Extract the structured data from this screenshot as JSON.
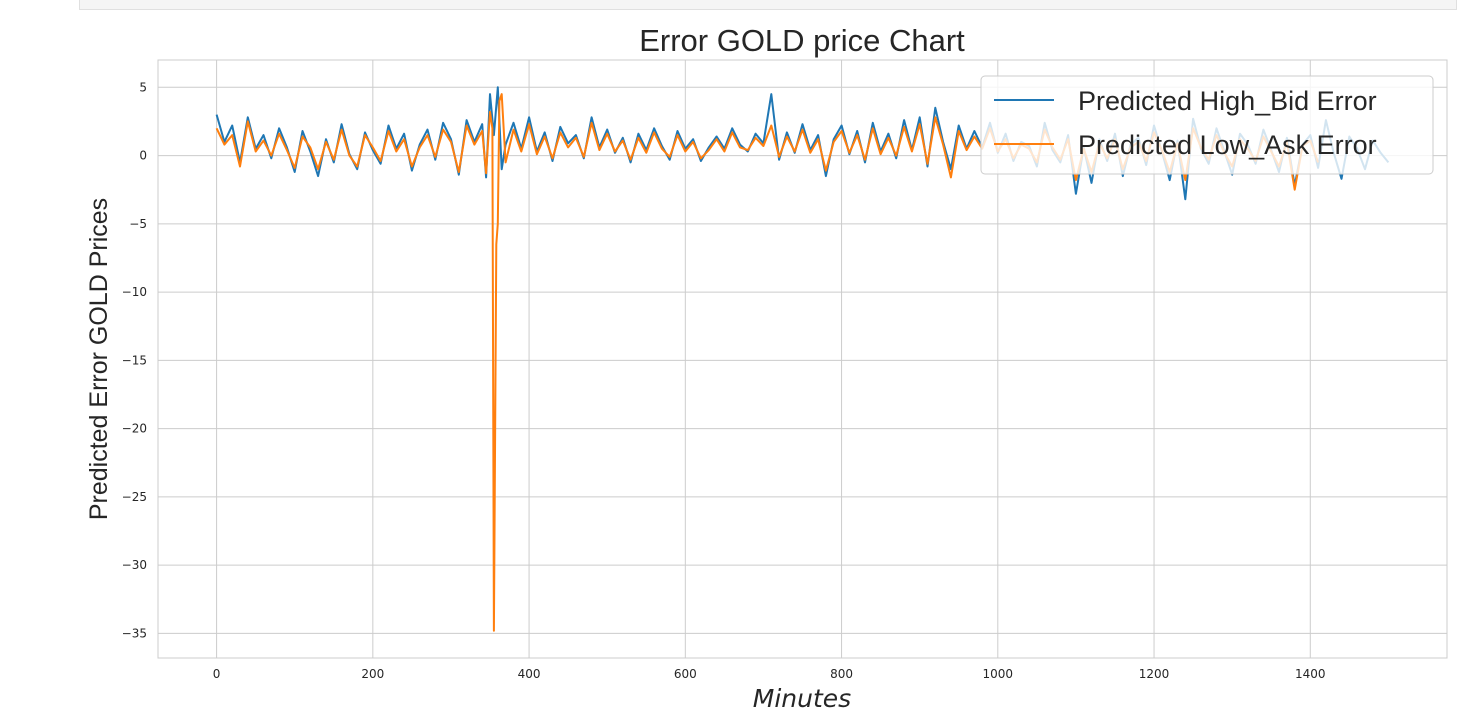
{
  "chart_data": {
    "type": "line",
    "title": "Error GOLD price Chart",
    "xlabel": "Minutes",
    "ylabel": "Predicted Error GOLD Prices",
    "xlim": [
      -75,
      1575
    ],
    "ylim": [
      -36.8,
      7.0
    ],
    "xticks": [
      0,
      200,
      400,
      600,
      800,
      1000,
      1200,
      1400
    ],
    "yticks": [
      5,
      0,
      -5,
      -10,
      -15,
      -20,
      -25,
      -30,
      -35
    ],
    "ytick_labels": [
      "5",
      "0",
      "−5",
      "−10",
      "−15",
      "−20",
      "−25",
      "−30",
      "−35"
    ],
    "grid": true,
    "legend_position": "top-right",
    "series": [
      {
        "name": "Predicted High_Bid Error",
        "color": "#1f77b4",
        "x": [
          0,
          10,
          20,
          30,
          40,
          50,
          60,
          70,
          80,
          90,
          100,
          110,
          120,
          130,
          140,
          150,
          160,
          170,
          180,
          190,
          200,
          210,
          220,
          230,
          240,
          250,
          260,
          270,
          280,
          290,
          300,
          310,
          320,
          330,
          340,
          345,
          350,
          355,
          360,
          365,
          370,
          380,
          390,
          400,
          410,
          420,
          430,
          440,
          450,
          460,
          470,
          480,
          490,
          500,
          510,
          520,
          530,
          540,
          550,
          560,
          570,
          580,
          590,
          600,
          610,
          620,
          630,
          640,
          650,
          660,
          670,
          680,
          690,
          700,
          710,
          720,
          730,
          740,
          750,
          760,
          770,
          780,
          790,
          800,
          810,
          820,
          830,
          840,
          850,
          860,
          870,
          880,
          890,
          900,
          910,
          920,
          930,
          940,
          950,
          960,
          970,
          980,
          990,
          1000,
          1010,
          1020,
          1030,
          1040,
          1050,
          1060,
          1070,
          1080,
          1090,
          1100,
          1110,
          1120,
          1130,
          1140,
          1150,
          1160,
          1170,
          1180,
          1190,
          1200,
          1210,
          1220,
          1230,
          1240,
          1250,
          1260,
          1270,
          1280,
          1290,
          1300,
          1310,
          1320,
          1330,
          1340,
          1350,
          1360,
          1370,
          1380,
          1390,
          1400,
          1410,
          1420,
          1430,
          1440,
          1450,
          1460,
          1470,
          1480,
          1490,
          1500
        ],
        "y": [
          3.0,
          1.0,
          2.2,
          -0.5,
          2.8,
          0.5,
          1.5,
          -0.2,
          2.0,
          0.6,
          -1.2,
          1.8,
          0.3,
          -1.5,
          1.2,
          -0.5,
          2.3,
          0.1,
          -1.0,
          1.7,
          0.4,
          -0.6,
          2.2,
          0.5,
          1.6,
          -1.1,
          0.8,
          1.9,
          -0.3,
          2.4,
          1.2,
          -1.4,
          2.6,
          1.0,
          2.3,
          -1.6,
          4.5,
          1.5,
          5.0,
          -1.0,
          0.8,
          2.4,
          0.5,
          2.8,
          0.3,
          1.7,
          -0.4,
          2.1,
          0.9,
          1.5,
          -0.2,
          2.8,
          0.6,
          1.9,
          0.2,
          1.3,
          -0.5,
          1.6,
          0.4,
          2.0,
          0.7,
          -0.3,
          1.8,
          0.5,
          1.2,
          -0.4,
          0.6,
          1.4,
          0.5,
          2.0,
          0.8,
          0.3,
          1.6,
          0.9,
          4.5,
          -0.3,
          1.7,
          0.2,
          2.3,
          0.4,
          1.5,
          -1.5,
          1.2,
          2.2,
          0.1,
          1.8,
          -0.5,
          2.4,
          0.3,
          1.6,
          -0.2,
          2.6,
          0.4,
          2.8,
          -0.8,
          3.5,
          1.0,
          -1.0,
          2.2,
          0.5,
          1.8,
          0.6,
          2.4,
          0.2,
          1.6,
          -0.4,
          1.0,
          0.7,
          -0.8,
          2.4,
          0.4,
          -0.5,
          1.5,
          -2.8,
          0.6,
          -2.0,
          1.2,
          -0.4,
          1.6,
          -1.5,
          0.8,
          1.3,
          -0.7,
          2.2,
          0.3,
          -1.8,
          1.1,
          -3.2,
          2.7,
          0.5,
          -0.6,
          2.0,
          0.3,
          -1.4,
          1.6,
          0.8,
          -0.6,
          1.9,
          0.4,
          -1.2,
          1.3,
          -2.2,
          0.8,
          1.5,
          -0.9,
          2.6,
          0.2,
          -1.7,
          1.4,
          0.5,
          -1.0,
          1.1,
          0.2,
          -0.5
        ]
      },
      {
        "name": "Predicted Low_Ask Error",
        "color": "#ff7f0e",
        "x": [
          0,
          10,
          20,
          30,
          40,
          50,
          60,
          70,
          80,
          90,
          100,
          110,
          120,
          130,
          140,
          150,
          160,
          170,
          180,
          190,
          200,
          210,
          220,
          230,
          240,
          250,
          260,
          270,
          280,
          290,
          300,
          310,
          320,
          330,
          340,
          345,
          350,
          353,
          355,
          358,
          360,
          362,
          365,
          370,
          380,
          390,
          400,
          410,
          420,
          430,
          440,
          450,
          460,
          470,
          480,
          490,
          500,
          510,
          520,
          530,
          540,
          550,
          560,
          570,
          580,
          590,
          600,
          610,
          620,
          630,
          640,
          650,
          660,
          670,
          680,
          690,
          700,
          710,
          720,
          730,
          740,
          750,
          760,
          770,
          780,
          790,
          800,
          810,
          820,
          830,
          840,
          850,
          860,
          870,
          880,
          890,
          900,
          910,
          920,
          930,
          940,
          950,
          960,
          970,
          980,
          990,
          1000,
          1010,
          1020,
          1030,
          1040,
          1050,
          1060,
          1070,
          1080,
          1090,
          1100,
          1110,
          1120,
          1130,
          1140,
          1150,
          1160,
          1170,
          1180,
          1190,
          1200,
          1210,
          1220,
          1230,
          1240,
          1250,
          1260,
          1270,
          1280,
          1290,
          1300,
          1310,
          1320,
          1330,
          1340,
          1350,
          1360,
          1370,
          1380,
          1390,
          1400,
          1410
        ],
        "y": [
          2.0,
          0.8,
          1.5,
          -0.8,
          2.5,
          0.3,
          1.1,
          0.0,
          1.6,
          0.4,
          -0.9,
          1.4,
          0.6,
          -1.0,
          1.0,
          -0.3,
          1.9,
          0.0,
          -0.8,
          1.5,
          0.6,
          -0.4,
          1.8,
          0.3,
          1.2,
          -0.8,
          0.6,
          1.5,
          -0.1,
          1.9,
          1.0,
          -1.2,
          2.2,
          0.8,
          1.8,
          -1.3,
          3.2,
          2.0,
          -34.8,
          -6.5,
          -5.0,
          4.0,
          4.5,
          -0.5,
          1.9,
          0.3,
          2.3,
          0.1,
          1.4,
          -0.2,
          1.7,
          0.6,
          1.3,
          -0.1,
          2.4,
          0.4,
          1.6,
          0.3,
          1.1,
          -0.3,
          1.3,
          0.2,
          1.7,
          0.5,
          -0.1,
          1.5,
          0.3,
          1.0,
          -0.2,
          0.4,
          1.2,
          0.3,
          1.7,
          0.6,
          0.4,
          1.3,
          0.7,
          2.2,
          -0.1,
          1.4,
          0.3,
          1.9,
          0.2,
          1.2,
          -1.1,
          1.0,
          1.8,
          0.2,
          1.5,
          -0.3,
          2.0,
          0.1,
          1.3,
          0.0,
          2.1,
          0.3,
          2.3,
          -0.6,
          2.8,
          0.8,
          -1.6,
          1.8,
          0.4,
          1.4,
          0.5,
          2.0,
          0.3,
          1.2,
          -0.2,
          0.8,
          0.5,
          -0.5,
          1.9,
          0.6,
          -0.3,
          1.2,
          -1.8,
          0.5,
          -1.2,
          0.9,
          -0.2,
          1.2,
          -1.0,
          0.6,
          1.0,
          -0.4,
          1.7,
          0.4,
          -1.2,
          0.9,
          -1.8,
          2.0,
          0.6,
          -0.3,
          1.5,
          0.2,
          -0.8,
          1.2,
          0.5,
          -0.4,
          1.4,
          0.3,
          -0.8,
          1.0,
          -2.5,
          0.7,
          1.1,
          -0.5
        ]
      }
    ]
  }
}
